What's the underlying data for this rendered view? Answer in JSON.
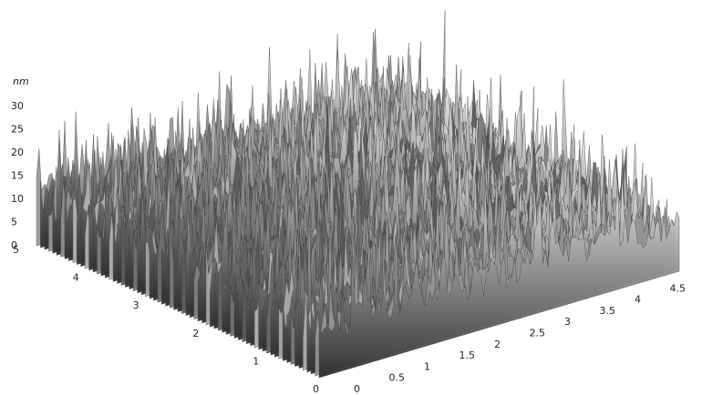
{
  "z_axis": {
    "label": "nm",
    "ticks": [
      "0",
      "5",
      "10",
      "15",
      "20",
      "25",
      "30"
    ]
  },
  "left_axis": {
    "ticks": [
      "0",
      "1",
      "2",
      "3",
      "4",
      "5"
    ]
  },
  "right_axis": {
    "ticks": [
      "0",
      "0.5",
      "1",
      "1.5",
      "2",
      "2.5",
      "3",
      "3.5",
      "4",
      "4.5"
    ]
  }
}
